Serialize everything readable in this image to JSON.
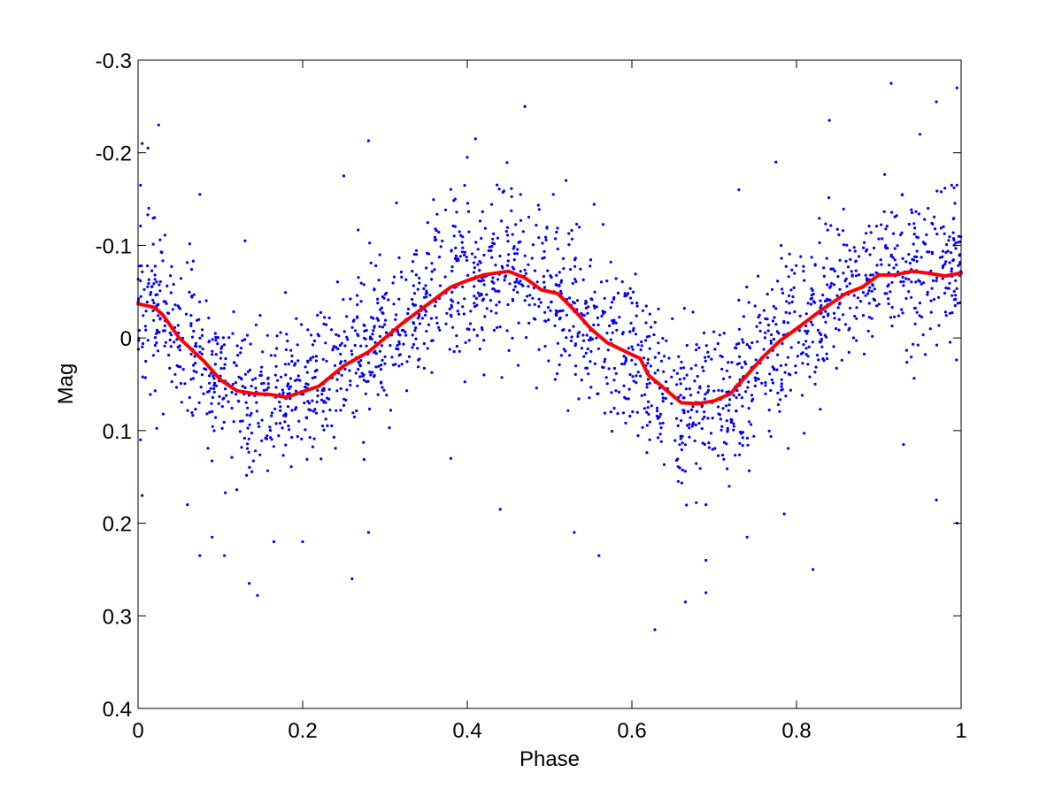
{
  "chart_data": {
    "type": "scatter",
    "xlabel": "Phase",
    "ylabel": "Mag",
    "xlim": [
      0,
      1
    ],
    "ylim": [
      -0.3,
      0.4
    ],
    "y_reversed": true,
    "grid": false,
    "x_ticks": [
      0,
      0.2,
      0.4,
      0.6,
      0.8,
      1
    ],
    "x_tick_labels": [
      "0",
      "0.2",
      "0.4",
      "0.6",
      "0.8",
      "1"
    ],
    "y_ticks": [
      -0.3,
      -0.2,
      -0.1,
      0,
      0.1,
      0.2,
      0.3,
      0.4
    ],
    "y_tick_labels": [
      "-0.3",
      "-0.2",
      "-0.1",
      "0",
      "0.1",
      "0.2",
      "0.3",
      "0.4"
    ],
    "series": [
      {
        "kind": "scatter",
        "color": "#0000ff",
        "marker": "dot",
        "point_count": 2100,
        "points": [
          [
            0.003,
            -0.165
          ],
          [
            0.005,
            -0.21
          ],
          [
            0.012,
            -0.205
          ],
          [
            0.025,
            -0.23
          ],
          [
            0.013,
            -0.14
          ],
          [
            0.02,
            -0.13
          ],
          [
            0.005,
            0.17
          ],
          [
            0.003,
            0.11
          ],
          [
            0.06,
            0.18
          ],
          [
            0.09,
            0.215
          ],
          [
            0.075,
            0.235
          ],
          [
            0.105,
            0.235
          ],
          [
            0.075,
            -0.155
          ],
          [
            0.13,
            -0.105
          ],
          [
            0.135,
            0.265
          ],
          [
            0.145,
            0.278
          ],
          [
            0.165,
            0.22
          ],
          [
            0.2,
            0.22
          ],
          [
            0.26,
            0.26
          ],
          [
            0.28,
            0.21
          ],
          [
            0.25,
            -0.175
          ],
          [
            0.28,
            -0.213
          ],
          [
            0.47,
            -0.25
          ],
          [
            0.41,
            -0.215
          ],
          [
            0.4,
            -0.195
          ],
          [
            0.52,
            -0.17
          ],
          [
            0.44,
            0.185
          ],
          [
            0.53,
            0.21
          ],
          [
            0.56,
            0.235
          ],
          [
            0.628,
            0.315
          ],
          [
            0.665,
            0.285
          ],
          [
            0.69,
            0.275
          ],
          [
            0.69,
            0.24
          ],
          [
            0.74,
            0.215
          ],
          [
            0.82,
            0.25
          ],
          [
            0.785,
            0.19
          ],
          [
            0.84,
            -0.235
          ],
          [
            0.915,
            -0.275
          ],
          [
            0.995,
            -0.27
          ],
          [
            0.97,
            -0.255
          ],
          [
            0.95,
            -0.22
          ],
          [
            0.93,
            0.115
          ],
          [
            0.97,
            0.175
          ],
          [
            0.995,
            0.2
          ],
          [
            0.775,
            -0.19
          ],
          [
            0.73,
            -0.16
          ],
          [
            0.38,
            0.13
          ],
          [
            0.69,
            0.18
          ]
        ]
      },
      {
        "kind": "line",
        "color": "#ff0000",
        "name": "",
        "x": [
          0,
          0.02,
          0.03,
          0.05,
          0.08,
          0.1,
          0.12,
          0.14,
          0.16,
          0.18,
          0.2,
          0.22,
          0.25,
          0.28,
          0.3,
          0.32,
          0.35,
          0.38,
          0.4,
          0.42,
          0.45,
          0.47,
          0.49,
          0.51,
          0.53,
          0.55,
          0.57,
          0.6,
          0.61,
          0.62,
          0.64,
          0.66,
          0.68,
          0.7,
          0.72,
          0.74,
          0.76,
          0.78,
          0.8,
          0.83,
          0.86,
          0.88,
          0.9,
          0.92,
          0.94,
          0.96,
          0.98,
          1.0
        ],
        "y": [
          -0.037,
          -0.033,
          -0.025,
          0.0,
          0.025,
          0.045,
          0.057,
          0.06,
          0.061,
          0.064,
          0.058,
          0.052,
          0.03,
          0.015,
          0.0,
          -0.015,
          -0.035,
          -0.055,
          -0.062,
          -0.068,
          -0.072,
          -0.065,
          -0.052,
          -0.048,
          -0.03,
          -0.01,
          0.005,
          0.018,
          0.022,
          0.04,
          0.055,
          0.07,
          0.071,
          0.068,
          0.06,
          0.04,
          0.02,
          0.003,
          -0.01,
          -0.03,
          -0.048,
          -0.055,
          -0.068,
          -0.068,
          -0.072,
          -0.07,
          -0.067,
          -0.07
        ]
      }
    ]
  }
}
